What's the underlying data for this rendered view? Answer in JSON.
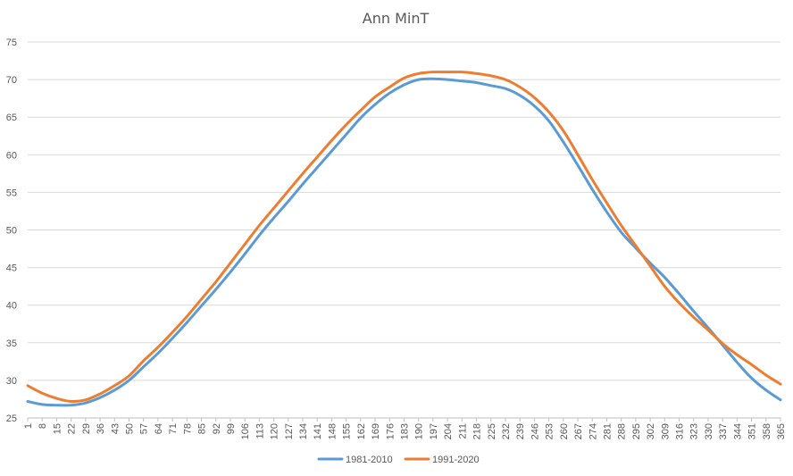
{
  "chart_data": {
    "type": "line",
    "title": "Ann MinT",
    "xlabel": "",
    "ylabel": "",
    "x_range": [
      1,
      365
    ],
    "x_tick_labels": [
      "1",
      "8",
      "15",
      "22",
      "29",
      "36",
      "43",
      "50",
      "57",
      "64",
      "71",
      "78",
      "85",
      "92",
      "99",
      "106",
      "113",
      "120",
      "127",
      "134",
      "141",
      "148",
      "155",
      "162",
      "169",
      "176",
      "183",
      "190",
      "197",
      "204",
      "211",
      "218",
      "225",
      "232",
      "239",
      "246",
      "253",
      "260",
      "267",
      "274",
      "281",
      "288",
      "295",
      "302",
      "309",
      "316",
      "323",
      "330",
      "337",
      "344",
      "351",
      "358",
      "365"
    ],
    "ylim": [
      25,
      75
    ],
    "y_ticks": [
      25,
      30,
      35,
      40,
      45,
      50,
      55,
      60,
      65,
      70,
      75
    ],
    "grid": "horizontal",
    "legend_position": "bottom",
    "x": [
      1,
      8,
      15,
      22,
      29,
      36,
      43,
      50,
      57,
      64,
      71,
      78,
      85,
      92,
      99,
      106,
      113,
      120,
      127,
      134,
      141,
      148,
      155,
      162,
      169,
      176,
      183,
      190,
      197,
      204,
      211,
      218,
      225,
      232,
      239,
      246,
      253,
      260,
      267,
      274,
      281,
      288,
      295,
      302,
      309,
      316,
      323,
      330,
      337,
      344,
      351,
      358,
      365
    ],
    "series": [
      {
        "name": "1981-2010",
        "color": "#5b9bd5",
        "values": [
          27.2,
          26.8,
          26.7,
          26.7,
          27.0,
          27.7,
          28.7,
          30.0,
          31.8,
          33.6,
          35.6,
          37.7,
          39.9,
          42.1,
          44.4,
          46.8,
          49.3,
          51.6,
          53.8,
          56.1,
          58.3,
          60.5,
          62.7,
          64.9,
          66.7,
          68.2,
          69.3,
          70.0,
          70.1,
          70.0,
          69.8,
          69.6,
          69.2,
          68.8,
          67.9,
          66.5,
          64.5,
          61.7,
          58.6,
          55.4,
          52.4,
          49.7,
          47.6,
          45.6,
          43.7,
          41.5,
          39.2,
          37.0,
          34.7,
          32.4,
          30.3,
          28.7,
          27.4
        ]
      },
      {
        "name": "1991-2020",
        "color": "#ed7d31",
        "values": [
          29.3,
          28.3,
          27.6,
          27.2,
          27.4,
          28.2,
          29.3,
          30.6,
          32.6,
          34.4,
          36.4,
          38.5,
          40.8,
          43.1,
          45.6,
          48.1,
          50.6,
          52.9,
          55.2,
          57.5,
          59.7,
          61.9,
          64.0,
          65.9,
          67.7,
          69.0,
          70.2,
          70.8,
          71.0,
          71.0,
          71.0,
          70.8,
          70.5,
          70.0,
          69.0,
          67.6,
          65.7,
          63.2,
          60.0,
          56.7,
          53.6,
          50.6,
          47.9,
          45.2,
          42.5,
          40.3,
          38.4,
          36.7,
          34.9,
          33.4,
          32.1,
          30.7,
          29.5
        ]
      }
    ]
  }
}
